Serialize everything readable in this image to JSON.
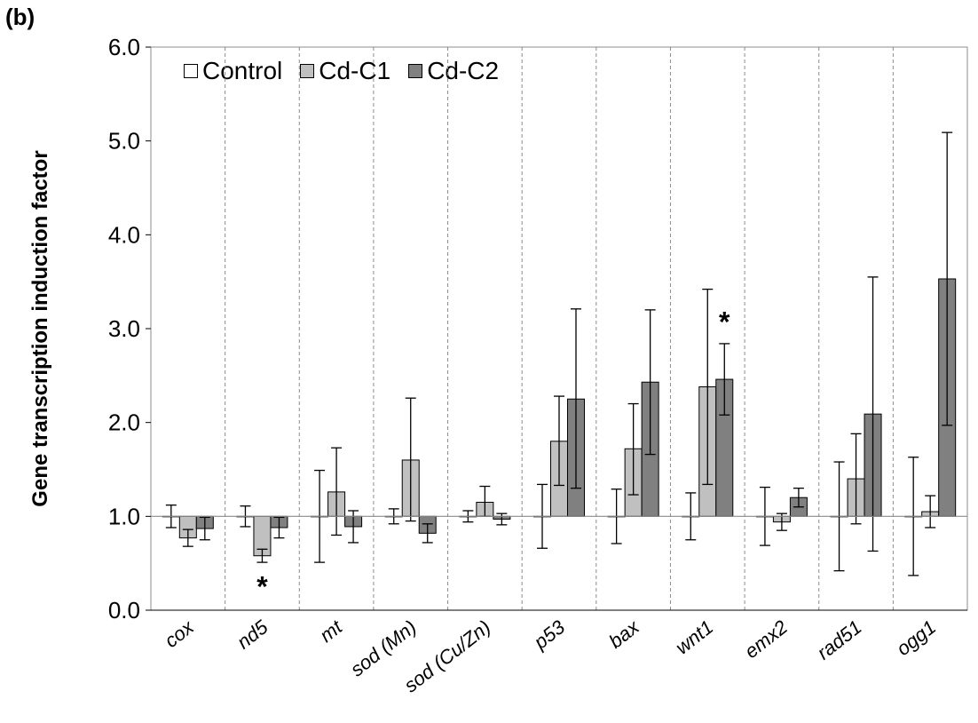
{
  "panel_label": "(b)",
  "colors": {
    "Control": "#ffffff",
    "Cd-C1": "#c0c0c0",
    "Cd-C2": "#808080"
  },
  "chart_data": {
    "type": "bar",
    "title": "",
    "xlabel": "",
    "ylabel": "Gene transcription induction factor",
    "ylim": [
      0,
      6
    ],
    "yticks": [
      "0.0",
      "1.0",
      "2.0",
      "3.0",
      "4.0",
      "5.0",
      "6.0"
    ],
    "baseline": 1.0,
    "legend": "top-left",
    "categories": [
      "cox",
      "nd5",
      "mt",
      "sod (Mn)",
      "sod (Cu/Zn)",
      "p53",
      "bax",
      "wnt1",
      "emx2",
      "rad51",
      "ogg1"
    ],
    "series": [
      {
        "name": "Control",
        "values": [
          1.0,
          1.0,
          1.0,
          1.0,
          1.0,
          1.0,
          1.0,
          1.0,
          1.0,
          1.0,
          1.0
        ],
        "err_low": [
          0.88,
          0.89,
          0.51,
          0.92,
          0.94,
          0.66,
          0.71,
          0.75,
          0.69,
          0.42,
          0.37
        ],
        "err_high": [
          1.12,
          1.11,
          1.49,
          1.08,
          1.06,
          1.34,
          1.29,
          1.25,
          1.31,
          1.58,
          1.63
        ]
      },
      {
        "name": "Cd-C1",
        "values": [
          0.77,
          0.58,
          1.26,
          1.6,
          1.15,
          1.8,
          1.72,
          2.38,
          0.94,
          1.4,
          1.05
        ],
        "err_low": [
          0.68,
          0.51,
          0.8,
          0.95,
          1.0,
          1.33,
          1.23,
          1.34,
          0.85,
          0.92,
          0.88
        ],
        "err_high": [
          0.86,
          0.65,
          1.73,
          2.26,
          1.32,
          2.28,
          2.2,
          3.42,
          1.03,
          1.88,
          1.22
        ]
      },
      {
        "name": "Cd-C2",
        "values": [
          0.87,
          0.88,
          0.89,
          0.82,
          0.97,
          2.25,
          2.43,
          2.46,
          1.2,
          2.09,
          3.53
        ],
        "err_low": [
          0.75,
          0.77,
          0.72,
          0.72,
          0.91,
          1.3,
          1.66,
          2.08,
          1.1,
          0.63,
          1.97
        ],
        "err_high": [
          0.99,
          0.99,
          1.06,
          0.92,
          1.03,
          3.21,
          3.2,
          2.84,
          1.3,
          3.55,
          5.09
        ]
      }
    ],
    "annotations": [
      {
        "text": "*",
        "category": "nd5",
        "series": "Cd-C1",
        "y": 0.28
      },
      {
        "text": "*",
        "category": "wnt1",
        "series": "Cd-C2",
        "y": 3.1
      }
    ]
  }
}
